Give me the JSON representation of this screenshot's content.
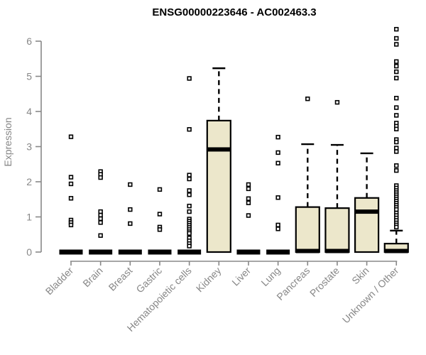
{
  "chart_data": {
    "type": "boxplot",
    "title": "ENSG00000223646 - AC002463.3",
    "xlabel": "",
    "ylabel": "Expression",
    "ylim": [
      0,
      6.4
    ],
    "yticks": [
      0,
      1,
      2,
      3,
      4,
      5,
      6
    ],
    "grid": false,
    "legend": null,
    "categories": [
      "Bladder",
      "Brain",
      "Breast",
      "Gastric",
      "Hematopoietic cells",
      "Kidney",
      "Liver",
      "Lung",
      "Pancreas",
      "Prostate",
      "Skin",
      "Unknown / Other"
    ],
    "boxes": [
      {
        "category": "Bladder",
        "q1": 0,
        "median": 0,
        "q3": 0,
        "whisker_low": 0,
        "whisker_high": 0,
        "outliers": [
          3.28,
          2.13,
          1.94,
          1.53,
          0.91,
          0.84,
          0.77
        ]
      },
      {
        "category": "Brain",
        "q1": 0,
        "median": 0,
        "q3": 0,
        "whisker_low": 0,
        "whisker_high": 0,
        "outliers": [
          2.29,
          2.21,
          2.12,
          1.15,
          1.05,
          0.95,
          0.84,
          0.47
        ]
      },
      {
        "category": "Breast",
        "q1": 0,
        "median": 0,
        "q3": 0,
        "whisker_low": 0,
        "whisker_high": 0,
        "outliers": [
          1.92,
          1.21,
          0.81
        ]
      },
      {
        "category": "Gastric",
        "q1": 0,
        "median": 0,
        "q3": 0,
        "whisker_low": 0,
        "whisker_high": 0,
        "outliers": [
          1.78,
          1.08,
          0.71,
          0.64
        ]
      },
      {
        "category": "Hematopoietic cells",
        "q1": 0,
        "median": 0,
        "q3": 0,
        "whisker_low": 0,
        "whisker_high": 0,
        "outliers": [
          4.94,
          3.49,
          2.19,
          2.08,
          1.75,
          1.63,
          1.31,
          1.15,
          0.94,
          0.88,
          0.82,
          0.76,
          0.7,
          0.64,
          0.58,
          0.53,
          0.4,
          0.32,
          0.24,
          0.17
        ]
      },
      {
        "category": "Kidney",
        "q1": 0,
        "median": 2.92,
        "q3": 3.74,
        "whisker_low": 0,
        "whisker_high": 5.23,
        "outliers": []
      },
      {
        "category": "Liver",
        "q1": 0,
        "median": 0,
        "q3": 0,
        "whisker_low": 0,
        "whisker_high": 0,
        "outliers": [
          1.92,
          1.8,
          1.52,
          1.4,
          1.04
        ]
      },
      {
        "category": "Lung",
        "q1": 0,
        "median": 0,
        "q3": 0,
        "whisker_low": 0,
        "whisker_high": 0,
        "outliers": [
          3.27,
          2.83,
          2.53,
          1.55,
          0.77,
          0.66
        ]
      },
      {
        "category": "Pancreas",
        "q1": 0,
        "median": 0.03,
        "q3": 1.28,
        "whisker_low": 0,
        "whisker_high": 3.07,
        "outliers": [
          4.36
        ]
      },
      {
        "category": "Prostate",
        "q1": 0,
        "median": 0.03,
        "q3": 1.25,
        "whisker_low": 0,
        "whisker_high": 3.05,
        "outliers": [
          4.26
        ]
      },
      {
        "category": "Skin",
        "q1": 0,
        "median": 1.15,
        "q3": 1.54,
        "whisker_low": 0,
        "whisker_high": 2.81,
        "outliers": []
      },
      {
        "category": "Unknown / Other",
        "q1": 0,
        "median": 0.03,
        "q3": 0.24,
        "whisker_low": 0,
        "whisker_high": 0.61,
        "outliers": [
          6.34,
          6.08,
          5.91,
          5.42,
          5.29,
          5.13,
          4.95,
          4.38,
          4.11,
          3.89,
          3.67,
          3.58,
          3.5,
          3.2,
          3.13,
          2.96,
          2.86,
          2.46,
          2.32,
          1.89,
          1.82,
          1.75,
          1.69,
          1.63,
          1.57,
          1.51,
          1.45,
          1.39,
          1.33,
          1.27,
          1.21,
          1.11,
          1.04,
          0.97,
          0.9,
          0.83,
          0.77,
          0.71
        ]
      }
    ],
    "styles": {
      "box_fill": "#ece7cb",
      "box_stroke": "#000000",
      "median_color": "#000000",
      "whisker_style": "dashed",
      "outlier_marker": "open-square",
      "axis_color": "#888888",
      "tick_label_color": "#878787",
      "title_color": "#000000",
      "background": "#ffffff"
    }
  }
}
